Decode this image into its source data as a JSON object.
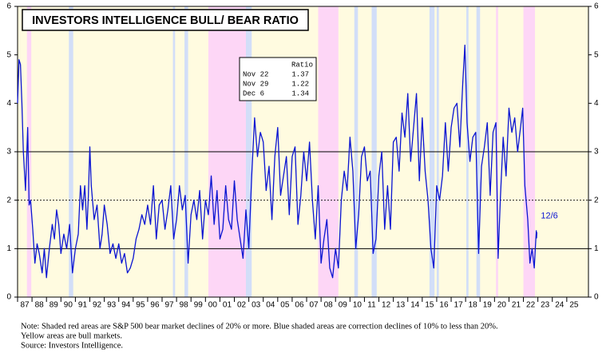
{
  "chart_data": {
    "type": "line",
    "title": "INVESTORS INTELLIGENCE BULL/ BEAR RATIO",
    "xlim": [
      1987,
      2026.5
    ],
    "ylim": [
      0,
      6
    ],
    "yticks": [
      0,
      1,
      2,
      3,
      4,
      5,
      6
    ],
    "xticks": [
      {
        "value": 1987,
        "label": "87"
      },
      {
        "value": 1988,
        "label": "88"
      },
      {
        "value": 1989,
        "label": "89"
      },
      {
        "value": 1990,
        "label": "90"
      },
      {
        "value": 1991,
        "label": "91"
      },
      {
        "value": 1992,
        "label": "92"
      },
      {
        "value": 1993,
        "label": "93"
      },
      {
        "value": 1994,
        "label": "94"
      },
      {
        "value": 1995,
        "label": "95"
      },
      {
        "value": 1996,
        "label": "96"
      },
      {
        "value": 1997,
        "label": "97"
      },
      {
        "value": 1998,
        "label": "98"
      },
      {
        "value": 1999,
        "label": "99"
      },
      {
        "value": 2000,
        "label": "00"
      },
      {
        "value": 2001,
        "label": "01"
      },
      {
        "value": 2002,
        "label": "02"
      },
      {
        "value": 2003,
        "label": "03"
      },
      {
        "value": 2004,
        "label": "04"
      },
      {
        "value": 2005,
        "label": "05"
      },
      {
        "value": 2006,
        "label": "06"
      },
      {
        "value": 2007,
        "label": "07"
      },
      {
        "value": 2008,
        "label": "08"
      },
      {
        "value": 2009,
        "label": "09"
      },
      {
        "value": 2010,
        "label": "10"
      },
      {
        "value": 2011,
        "label": "11"
      },
      {
        "value": 2012,
        "label": "12"
      },
      {
        "value": 2013,
        "label": "13"
      },
      {
        "value": 2014,
        "label": "14"
      },
      {
        "value": 2015,
        "label": "15"
      },
      {
        "value": 2016,
        "label": "16"
      },
      {
        "value": 2017,
        "label": "17"
      },
      {
        "value": 2018,
        "label": "18"
      },
      {
        "value": 2019,
        "label": "19"
      },
      {
        "value": 2020,
        "label": "20"
      },
      {
        "value": 2021,
        "label": "21"
      },
      {
        "value": 2022,
        "label": "22"
      },
      {
        "value": 2023,
        "label": "23"
      },
      {
        "value": 2024,
        "label": "24"
      },
      {
        "value": 2025,
        "label": "25"
      }
    ],
    "hlines": [
      {
        "value": 1,
        "style": "solid"
      },
      {
        "value": 2,
        "style": "dotted"
      },
      {
        "value": 3,
        "style": "solid"
      }
    ],
    "background_color": "#fffbe0",
    "bear_color": "#fdd6f6",
    "correction_color": "#d2def8",
    "bear_markets": [
      [
        1987.65,
        1987.95
      ],
      [
        2000.2,
        2002.8
      ],
      [
        2007.8,
        2009.2
      ],
      [
        2020.1,
        2020.25
      ],
      [
        2022.0,
        2022.8
      ]
    ],
    "corrections": [
      [
        1990.55,
        1990.85
      ],
      [
        1997.75,
        1997.9
      ],
      [
        1998.55,
        1998.8
      ],
      [
        2002.8,
        2003.2
      ],
      [
        2010.3,
        2010.55
      ],
      [
        2011.5,
        2011.85
      ],
      [
        2015.5,
        2015.85
      ],
      [
        2016.0,
        2016.15
      ],
      [
        2018.05,
        2018.2
      ],
      [
        2018.75,
        2019.0
      ]
    ],
    "x": [
      1987.0,
      1987.1,
      1987.2,
      1987.3,
      1987.4,
      1987.55,
      1987.7,
      1987.8,
      1987.9,
      1988.05,
      1988.2,
      1988.35,
      1988.5,
      1988.7,
      1988.85,
      1989.0,
      1989.2,
      1989.4,
      1989.55,
      1989.7,
      1989.85,
      1990.0,
      1990.2,
      1990.4,
      1990.6,
      1990.8,
      1991.0,
      1991.2,
      1991.35,
      1991.5,
      1991.65,
      1991.8,
      1991.9,
      1992.0,
      1992.1,
      1992.3,
      1992.5,
      1992.7,
      1992.85,
      1993.0,
      1993.2,
      1993.4,
      1993.6,
      1993.8,
      1994.0,
      1994.2,
      1994.4,
      1994.6,
      1994.8,
      1995.0,
      1995.2,
      1995.4,
      1995.6,
      1995.8,
      1996.0,
      1996.2,
      1996.4,
      1996.6,
      1996.8,
      1997.0,
      1997.2,
      1997.4,
      1997.6,
      1997.8,
      1998.0,
      1998.2,
      1998.4,
      1998.6,
      1998.8,
      1999.0,
      1999.2,
      1999.4,
      1999.6,
      1999.8,
      2000.0,
      2000.2,
      2000.4,
      2000.6,
      2000.8,
      2001.0,
      2001.2,
      2001.4,
      2001.6,
      2001.8,
      2002.0,
      2002.2,
      2002.4,
      2002.6,
      2002.8,
      2003.0,
      2003.2,
      2003.4,
      2003.6,
      2003.8,
      2004.0,
      2004.2,
      2004.4,
      2004.6,
      2004.8,
      2005.0,
      2005.2,
      2005.4,
      2005.6,
      2005.8,
      2006.0,
      2006.2,
      2006.4,
      2006.6,
      2006.8,
      2007.0,
      2007.2,
      2007.4,
      2007.6,
      2007.8,
      2008.0,
      2008.2,
      2008.4,
      2008.6,
      2008.8,
      2009.0,
      2009.2,
      2009.4,
      2009.6,
      2009.8,
      2010.0,
      2010.2,
      2010.4,
      2010.6,
      2010.8,
      2011.0,
      2011.2,
      2011.4,
      2011.6,
      2011.8,
      2012.0,
      2012.2,
      2012.4,
      2012.6,
      2012.8,
      2013.0,
      2013.2,
      2013.4,
      2013.6,
      2013.8,
      2014.0,
      2014.2,
      2014.4,
      2014.6,
      2014.8,
      2015.0,
      2015.2,
      2015.4,
      2015.6,
      2015.8,
      2016.0,
      2016.2,
      2016.4,
      2016.6,
      2016.8,
      2017.0,
      2017.2,
      2017.4,
      2017.6,
      2017.8,
      2017.95,
      2018.1,
      2018.3,
      2018.5,
      2018.7,
      2018.9,
      2019.1,
      2019.3,
      2019.5,
      2019.7,
      2019.9,
      2020.1,
      2020.25,
      2020.4,
      2020.6,
      2020.8,
      2021.0,
      2021.2,
      2021.4,
      2021.6,
      2021.8,
      2021.95,
      2022.1,
      2022.3,
      2022.45,
      2022.6,
      2022.75,
      2022.89,
      2022.91,
      2022.93
    ],
    "series": [
      {
        "name": "Bull/Bear Ratio",
        "color": "#0a14d2",
        "values": [
          4.0,
          4.9,
          4.8,
          4.0,
          3.0,
          2.2,
          3.5,
          1.9,
          2.0,
          1.4,
          0.7,
          1.1,
          0.9,
          0.5,
          1.0,
          0.4,
          1.0,
          1.5,
          1.2,
          1.8,
          1.5,
          0.9,
          1.3,
          1.0,
          1.5,
          0.5,
          1.0,
          1.3,
          2.3,
          1.8,
          2.3,
          1.4,
          2.1,
          3.1,
          2.3,
          1.6,
          1.9,
          1.0,
          1.3,
          1.9,
          1.5,
          0.9,
          1.1,
          0.8,
          1.1,
          0.7,
          0.9,
          0.5,
          0.6,
          0.8,
          1.2,
          1.4,
          1.7,
          1.5,
          1.9,
          1.5,
          2.3,
          1.2,
          1.9,
          2.0,
          1.4,
          1.8,
          2.3,
          1.2,
          1.6,
          2.3,
          1.8,
          2.1,
          0.7,
          1.7,
          2.0,
          1.6,
          2.2,
          1.2,
          2.0,
          1.7,
          2.5,
          1.5,
          2.2,
          1.2,
          1.4,
          2.3,
          1.6,
          1.4,
          2.4,
          1.6,
          1.2,
          0.8,
          1.8,
          1.0,
          2.5,
          3.7,
          2.9,
          3.4,
          3.2,
          2.2,
          2.7,
          1.6,
          2.9,
          3.5,
          2.1,
          2.5,
          2.9,
          1.7,
          2.9,
          3.1,
          1.5,
          2.1,
          3.0,
          2.4,
          3.2,
          2.0,
          1.2,
          2.3,
          0.7,
          1.2,
          1.6,
          0.6,
          0.4,
          1.0,
          0.6,
          2.0,
          2.6,
          2.2,
          3.3,
          2.6,
          1.0,
          1.7,
          2.9,
          3.1,
          2.4,
          2.6,
          0.9,
          1.2,
          2.5,
          3.0,
          1.4,
          2.3,
          1.4,
          3.2,
          3.3,
          2.6,
          3.8,
          3.3,
          4.2,
          2.8,
          3.5,
          4.2,
          2.4,
          3.7,
          2.6,
          2.0,
          1.0,
          0.6,
          2.3,
          2.0,
          2.5,
          3.6,
          2.6,
          3.5,
          3.9,
          4.0,
          3.1,
          4.4,
          5.2,
          3.6,
          2.8,
          3.3,
          3.4,
          0.9,
          2.7,
          3.1,
          3.6,
          2.1,
          3.4,
          3.6,
          0.8,
          2.0,
          3.3,
          2.5,
          3.9,
          3.4,
          3.7,
          3.0,
          3.5,
          3.9,
          2.3,
          1.6,
          0.7,
          1.0,
          0.6,
          1.37,
          1.22,
          1.34
        ]
      }
    ],
    "end_label": "12/6",
    "table": {
      "header": "Ratio",
      "rows": [
        [
          "Nov 22",
          1.37
        ],
        [
          "Nov 29",
          1.22
        ],
        [
          "Dec 6",
          1.34
        ]
      ]
    },
    "notes": [
      "Note: Shaded red areas are S&P 500 bear market declines of 20% or more.  Blue shaded areas are correction declines of 10% to less than 20%.",
      "Yellow areas are bull markets.",
      "Source: Investors Intelligence."
    ]
  }
}
